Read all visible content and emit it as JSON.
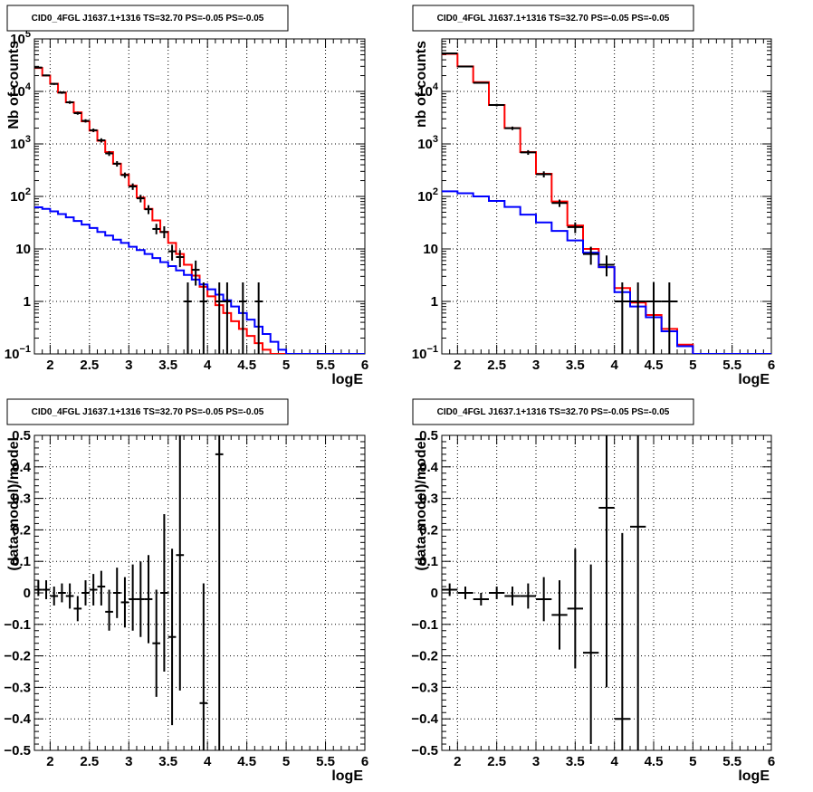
{
  "chart_data": [
    {
      "type": "line",
      "title": "CID0_4FGL J1637.1+1316 TS=32.70 PS=-0.05 PS=-0.05",
      "xlabel": "logE",
      "ylabel": "Nb of counts",
      "xlim": [
        1.8,
        6.0
      ],
      "ylim": [
        0.1,
        100000
      ],
      "yscale": "log",
      "grid": true,
      "x_ticks": [
        "2",
        "2.5",
        "3",
        "3.5",
        "4",
        "4.5",
        "5",
        "5.5",
        "6"
      ],
      "y_ticks": [
        "10^-1",
        "1",
        "10",
        "10^2",
        "10^3",
        "10^4",
        "10^5"
      ],
      "bin_edges": [
        1.8,
        1.9,
        2.0,
        2.1,
        2.2,
        2.3,
        2.4,
        2.5,
        2.6,
        2.7,
        2.8,
        2.9,
        3.0,
        3.1,
        3.2,
        3.3,
        3.4,
        3.5,
        3.6,
        3.7,
        3.8,
        3.9,
        4.0,
        4.1,
        4.2,
        4.3,
        4.4,
        4.5,
        4.6,
        4.7,
        4.8,
        4.9,
        5.0,
        5.1,
        5.2,
        5.3,
        5.4,
        5.5,
        5.6,
        5.7,
        5.8,
        5.9,
        6.0
      ],
      "series": [
        {
          "color": "#ff0000",
          "style": "step",
          "values": [
            28000,
            20000,
            14000,
            9500,
            6200,
            4000,
            2700,
            1800,
            1150,
            700,
            420,
            260,
            160,
            95,
            58,
            35,
            21,
            13,
            8,
            5,
            3.1,
            1.9,
            1.25,
            0.85,
            0.6,
            0.42,
            0.3,
            0.22,
            0.16,
            0.12,
            0.1,
            0.1,
            0.1,
            0.1,
            0.1,
            0.1,
            0.1,
            0.1,
            0.1,
            0.1,
            0.1,
            0.1
          ]
        },
        {
          "color": "#0000ff",
          "style": "step",
          "values": [
            62,
            58,
            52,
            46,
            40,
            34,
            29,
            25,
            21,
            18,
            15,
            13,
            11,
            9.5,
            8,
            6.7,
            5.6,
            4.7,
            3.9,
            3.2,
            2.6,
            2.1,
            1.7,
            1.35,
            1.05,
            0.8,
            0.6,
            0.45,
            0.33,
            0.24,
            0.17,
            0.12,
            0.1,
            0.1,
            0.1,
            0.1,
            0.1,
            0.1,
            0.1,
            0.1,
            0.1,
            0.1
          ]
        },
        {
          "color": "#000000",
          "style": "points",
          "points": [
            {
              "x": 1.85,
              "y": 28500,
              "lo": 27500,
              "hi": 29500
            },
            {
              "x": 1.95,
              "y": 20200,
              "lo": 19500,
              "hi": 20900
            },
            {
              "x": 2.05,
              "y": 13900,
              "lo": 13300,
              "hi": 14500
            },
            {
              "x": 2.15,
              "y": 9500,
              "lo": 9000,
              "hi": 10000
            },
            {
              "x": 2.25,
              "y": 6200,
              "lo": 5800,
              "hi": 6600
            },
            {
              "x": 2.35,
              "y": 3850,
              "lo": 3600,
              "hi": 4100
            },
            {
              "x": 2.45,
              "y": 2750,
              "lo": 2550,
              "hi": 2950
            },
            {
              "x": 2.55,
              "y": 1820,
              "lo": 1680,
              "hi": 1960
            },
            {
              "x": 2.65,
              "y": 1170,
              "lo": 1060,
              "hi": 1280
            },
            {
              "x": 2.75,
              "y": 660,
              "lo": 590,
              "hi": 730
            },
            {
              "x": 2.85,
              "y": 420,
              "lo": 370,
              "hi": 470
            },
            {
              "x": 2.95,
              "y": 255,
              "lo": 225,
              "hi": 285
            },
            {
              "x": 3.05,
              "y": 155,
              "lo": 133,
              "hi": 177
            },
            {
              "x": 3.15,
              "y": 92,
              "lo": 77,
              "hi": 107
            },
            {
              "x": 3.25,
              "y": 57,
              "lo": 46,
              "hi": 68
            },
            {
              "x": 3.35,
              "y": 24,
              "lo": 19,
              "hi": 30
            },
            {
              "x": 3.45,
              "y": 21,
              "lo": 16,
              "hi": 27
            },
            {
              "x": 3.55,
              "y": 9,
              "lo": 6,
              "hi": 12
            },
            {
              "x": 3.65,
              "y": 7,
              "lo": 4.5,
              "hi": 9.5
            },
            {
              "x": 3.75,
              "y": 1,
              "lo": 0.1,
              "hi": 2.3
            },
            {
              "x": 3.85,
              "y": 4,
              "lo": 2,
              "hi": 6
            },
            {
              "x": 3.95,
              "y": 1,
              "lo": 0.1,
              "hi": 2.3
            },
            {
              "x": 4.15,
              "y": 1,
              "lo": 0.1,
              "hi": 2.3
            },
            {
              "x": 4.25,
              "y": 1,
              "lo": 0.1,
              "hi": 2.3
            },
            {
              "x": 4.45,
              "y": 1,
              "lo": 0.1,
              "hi": 2.3
            },
            {
              "x": 4.65,
              "y": 1,
              "lo": 0.1,
              "hi": 2.3
            }
          ]
        }
      ]
    },
    {
      "type": "line",
      "title": "CID0_4FGL J1637.1+1316 TS=32.70 PS=-0.05 PS=-0.05",
      "xlabel": "logE",
      "ylabel": "nb of counts",
      "xlim": [
        1.8,
        6.0
      ],
      "ylim": [
        0.1,
        100000
      ],
      "yscale": "log",
      "grid": true,
      "x_ticks": [
        "2",
        "2.5",
        "3",
        "3.5",
        "4",
        "4.5",
        "5",
        "5.5",
        "6"
      ],
      "y_ticks": [
        "10^-1",
        "1",
        "10",
        "10^2",
        "10^3",
        "10^4"
      ],
      "bin_edges": [
        1.8,
        2.0,
        2.2,
        2.4,
        2.6,
        2.8,
        3.0,
        3.2,
        3.4,
        3.6,
        3.8,
        4.0,
        4.2,
        4.4,
        4.6,
        4.8,
        5.0,
        5.2,
        5.4,
        5.6,
        5.8,
        6.0
      ],
      "series": [
        {
          "color": "#ff0000",
          "style": "step",
          "values": [
            52000,
            30000,
            15000,
            5500,
            2000,
            700,
            270,
            80,
            28,
            10,
            4.5,
            1.8,
            0.95,
            0.55,
            0.3,
            0.15,
            0.1,
            0.1,
            0.1,
            0.1,
            0.1
          ]
        },
        {
          "color": "#0000ff",
          "style": "step",
          "values": [
            125,
            115,
            100,
            82,
            63,
            45,
            32,
            22,
            14.5,
            8.5,
            4.5,
            1.5,
            0.8,
            0.5,
            0.27,
            0.14,
            0.1,
            0.1,
            0.1,
            0.1,
            0.1
          ]
        },
        {
          "color": "#000000",
          "style": "points",
          "points": [
            {
              "x": 1.9,
              "y": 53000,
              "lo": 52000,
              "hi": 54000
            },
            {
              "x": 2.1,
              "y": 29800,
              "lo": 29100,
              "hi": 30500
            },
            {
              "x": 2.3,
              "y": 14600,
              "lo": 14100,
              "hi": 15100
            },
            {
              "x": 2.5,
              "y": 5500,
              "lo": 5200,
              "hi": 5800
            },
            {
              "x": 2.7,
              "y": 1990,
              "lo": 1840,
              "hi": 2140
            },
            {
              "x": 2.9,
              "y": 690,
              "lo": 620,
              "hi": 760
            },
            {
              "x": 3.1,
              "y": 265,
              "lo": 230,
              "hi": 300
            },
            {
              "x": 3.3,
              "y": 75,
              "lo": 63,
              "hi": 87
            },
            {
              "x": 3.5,
              "y": 26,
              "lo": 20,
              "hi": 32
            },
            {
              "x": 3.7,
              "y": 8,
              "lo": 5,
              "hi": 11
            },
            {
              "x": 3.9,
              "y": 5,
              "lo": 3,
              "hi": 7.5
            },
            {
              "x": 4.1,
              "y": 1,
              "lo": 0.1,
              "hi": 2.3
            },
            {
              "x": 4.3,
              "y": 1,
              "lo": 0.1,
              "hi": 2.3
            },
            {
              "x": 4.5,
              "y": 1,
              "lo": 0.1,
              "hi": 2.3
            },
            {
              "x": 4.7,
              "y": 1,
              "lo": 0.1,
              "hi": 2.3
            }
          ]
        }
      ]
    },
    {
      "type": "scatter",
      "title": "CID0_4FGL J1637.1+1316 TS=32.70 PS=-0.05 PS=-0.05",
      "xlabel": "logE",
      "ylabel": "(data-model)/model",
      "xlim": [
        1.8,
        6.0
      ],
      "ylim": [
        -0.5,
        0.5
      ],
      "grid": true,
      "x_ticks": [
        "2",
        "2.5",
        "3",
        "3.5",
        "4",
        "4.5",
        "5",
        "5.5",
        "6"
      ],
      "y_ticks": [
        "−0.5",
        "−0.4",
        "−0.3",
        "−0.2",
        "−0.1",
        "0",
        "0.1",
        "0.2",
        "0.3",
        "0.4",
        "0.5"
      ],
      "xerr": 0.05,
      "series": [
        {
          "color": "#000000",
          "points": [
            {
              "x": 1.85,
              "y": 0.01,
              "lo": -0.01,
              "hi": 0.04
            },
            {
              "x": 1.95,
              "y": 0.01,
              "lo": -0.02,
              "hi": 0.04
            },
            {
              "x": 2.05,
              "y": -0.01,
              "lo": -0.04,
              "hi": 0.02
            },
            {
              "x": 2.15,
              "y": 0.0,
              "lo": -0.03,
              "hi": 0.03
            },
            {
              "x": 2.25,
              "y": -0.01,
              "lo": -0.05,
              "hi": 0.03
            },
            {
              "x": 2.35,
              "y": -0.05,
              "lo": -0.09,
              "hi": -0.01
            },
            {
              "x": 2.45,
              "y": 0.0,
              "lo": -0.04,
              "hi": 0.04
            },
            {
              "x": 2.55,
              "y": 0.01,
              "lo": -0.04,
              "hi": 0.06
            },
            {
              "x": 2.65,
              "y": 0.02,
              "lo": -0.04,
              "hi": 0.07
            },
            {
              "x": 2.75,
              "y": -0.06,
              "lo": -0.12,
              "hi": 0.01
            },
            {
              "x": 2.85,
              "y": 0.0,
              "lo": -0.08,
              "hi": 0.08
            },
            {
              "x": 2.95,
              "y": -0.03,
              "lo": -0.11,
              "hi": 0.05
            },
            {
              "x": 3.05,
              "y": -0.02,
              "lo": -0.12,
              "hi": 0.09
            },
            {
              "x": 3.15,
              "y": -0.02,
              "lo": -0.14,
              "hi": 0.1
            },
            {
              "x": 3.25,
              "y": -0.02,
              "lo": -0.16,
              "hi": 0.12
            },
            {
              "x": 3.35,
              "y": -0.16,
              "lo": -0.33,
              "hi": 0.01
            },
            {
              "x": 3.45,
              "y": 0.0,
              "lo": -0.25,
              "hi": 0.25
            },
            {
              "x": 3.55,
              "y": -0.14,
              "lo": -0.42,
              "hi": 0.14
            },
            {
              "x": 3.65,
              "y": 0.12,
              "lo": -0.31,
              "hi": 0.55
            },
            {
              "x": 3.95,
              "y": -0.35,
              "lo": -0.85,
              "hi": 0.03
            },
            {
              "x": 4.15,
              "y": 0.44,
              "lo": -0.9,
              "hi": 0.9
            }
          ]
        }
      ]
    },
    {
      "type": "scatter",
      "title": "CID0_4FGL J1637.1+1316 TS=32.70 PS=-0.05 PS=-0.05",
      "xlabel": "logE",
      "ylabel": "(data-model)/model",
      "xlim": [
        1.8,
        6.0
      ],
      "ylim": [
        -0.5,
        0.5
      ],
      "grid": true,
      "x_ticks": [
        "2",
        "2.5",
        "3",
        "3.5",
        "4",
        "4.5",
        "5",
        "5.5",
        "6"
      ],
      "y_ticks": [
        "−0.5",
        "−0.4",
        "−0.3",
        "−0.2",
        "−0.1",
        "0",
        "0.1",
        "0.2",
        "0.3",
        "0.4",
        "0.5"
      ],
      "xerr": 0.1,
      "series": [
        {
          "color": "#000000",
          "points": [
            {
              "x": 1.9,
              "y": 0.01,
              "lo": -0.01,
              "hi": 0.03
            },
            {
              "x": 2.1,
              "y": 0.0,
              "lo": -0.02,
              "hi": 0.02
            },
            {
              "x": 2.3,
              "y": -0.02,
              "lo": -0.04,
              "hi": 0.0
            },
            {
              "x": 2.5,
              "y": 0.0,
              "lo": -0.02,
              "hi": 0.02
            },
            {
              "x": 2.7,
              "y": -0.01,
              "lo": -0.04,
              "hi": 0.02
            },
            {
              "x": 2.9,
              "y": -0.01,
              "lo": -0.05,
              "hi": 0.03
            },
            {
              "x": 3.1,
              "y": -0.02,
              "lo": -0.09,
              "hi": 0.05
            },
            {
              "x": 3.3,
              "y": -0.07,
              "lo": -0.18,
              "hi": 0.04
            },
            {
              "x": 3.5,
              "y": -0.05,
              "lo": -0.24,
              "hi": 0.14
            },
            {
              "x": 3.7,
              "y": -0.19,
              "lo": -0.48,
              "hi": 0.09
            },
            {
              "x": 3.9,
              "y": 0.27,
              "lo": -0.3,
              "hi": 0.55
            },
            {
              "x": 4.1,
              "y": -0.4,
              "lo": -0.9,
              "hi": 0.19
            },
            {
              "x": 4.3,
              "y": 0.21,
              "lo": -0.55,
              "hi": 0.55
            }
          ]
        }
      ]
    }
  ]
}
